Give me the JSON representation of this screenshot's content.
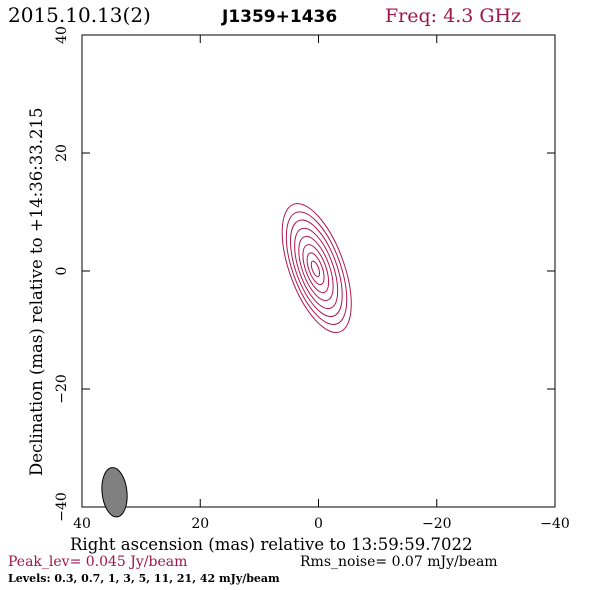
{
  "chart_data": {
    "type": "contour",
    "header": {
      "date": "2015.10.13(2)",
      "source": "J1359+1436",
      "freq": "Freq: 4.3 GHz"
    },
    "xlabel": "Right ascension (mas) relative to 13:59:59.7022",
    "ylabel": "Declination (mas) relative to +14:36:33.215",
    "xlim": [
      40,
      -40
    ],
    "ylim": [
      -40,
      40
    ],
    "xticks": [
      40,
      20,
      0,
      -20,
      -40
    ],
    "yticks": [
      -40,
      -20,
      0,
      20,
      40
    ],
    "xtick_labels": [
      "40",
      "20",
      "0",
      "−20",
      "−40"
    ],
    "ytick_labels": [
      "−40",
      "−20",
      "0",
      "20",
      "40"
    ],
    "peak": "Peak_lev=  0.045 Jy/beam",
    "noise": "Rms_noise= 0.07 mJy/beam",
    "levels_text": "Levels: 0.3, 0.7,   1,   3,   5,  11,  21,  42 mJy/beam",
    "levels": [
      0.3,
      0.7,
      1,
      3,
      5,
      11,
      21,
      42
    ],
    "source_center": [
      0.3,
      0.5
    ],
    "source_major_axis_mas": 11.5,
    "source_minor_axis_mas": 4.6,
    "source_pa_deg": -20,
    "beam_center": [
      34.5,
      -37.5
    ],
    "beam_major_mas": 4.2,
    "beam_minor_mas": 2.1,
    "beam_pa_deg": -6,
    "colors": {
      "contour": "#b0174f",
      "freq": "#a0154a",
      "peak": "#a0154a",
      "beam_fill": "#808080",
      "axis": "#000000"
    }
  }
}
